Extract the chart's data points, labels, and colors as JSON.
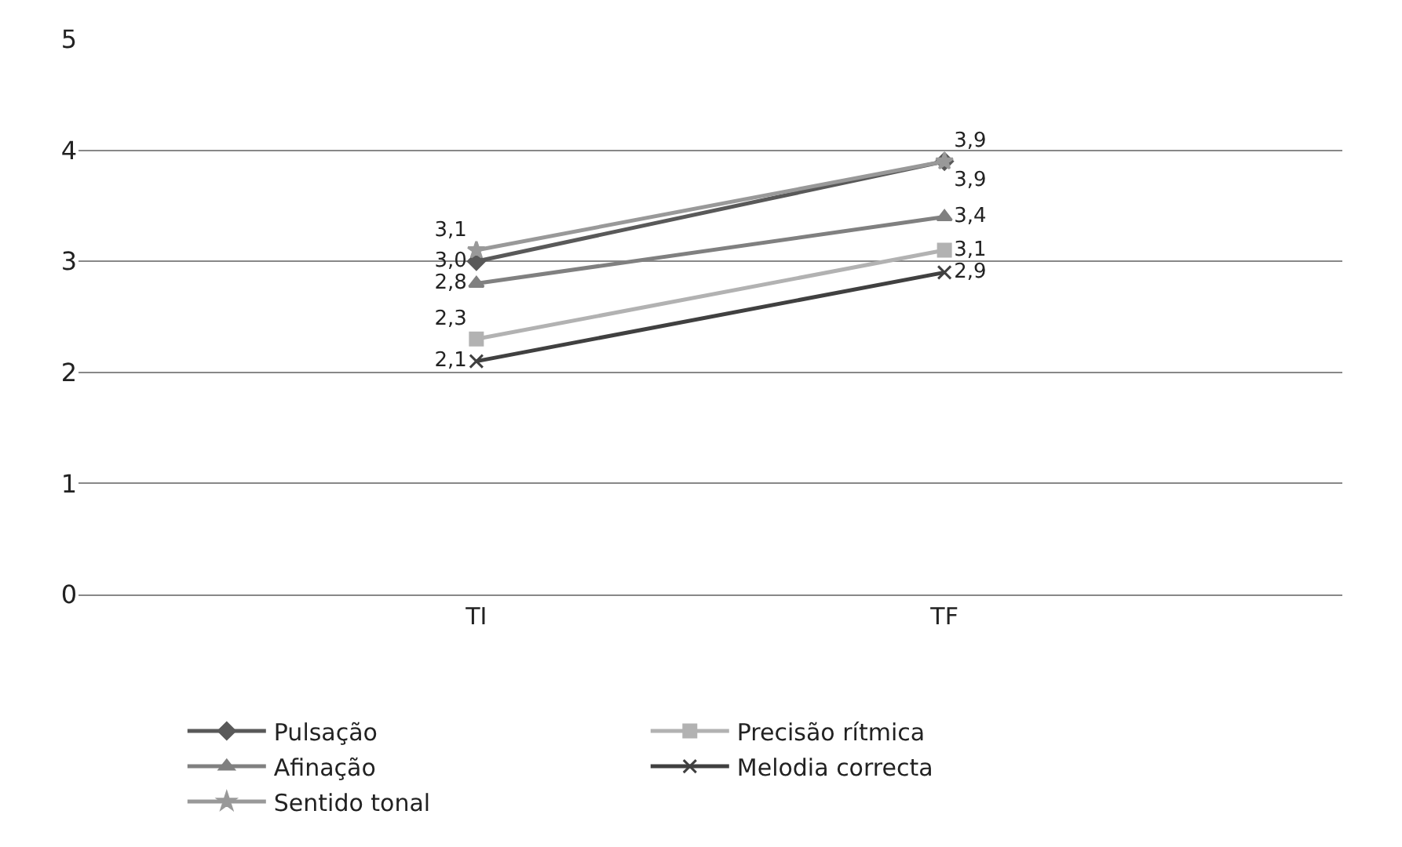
{
  "chart_data": {
    "type": "line",
    "categories": [
      "TI",
      "TF"
    ],
    "series": [
      {
        "name": "Pulsação",
        "color": "#595959",
        "marker": "diamond",
        "values": [
          3.0,
          3.9
        ],
        "value_labels": [
          "3,0",
          "3,9"
        ]
      },
      {
        "name": "Precisão rítmica",
        "color": "#b2b2b2",
        "marker": "square",
        "values": [
          2.3,
          3.1
        ],
        "value_labels": [
          "2,3",
          "3,1"
        ]
      },
      {
        "name": "Afinação",
        "color": "#808080",
        "marker": "triangle",
        "values": [
          2.8,
          3.4
        ],
        "value_labels": [
          "2,8",
          "3,4"
        ]
      },
      {
        "name": "Melodia correcta",
        "color": "#404040",
        "marker": "cross",
        "values": [
          2.1,
          2.9
        ],
        "value_labels": [
          "2,1",
          "2,9"
        ]
      },
      {
        "name": "Sentido tonal",
        "color": "#999999",
        "marker": "star",
        "values": [
          3.1,
          3.9
        ],
        "value_labels": [
          "3,1",
          "3,9"
        ]
      }
    ],
    "ylim": [
      0,
      5
    ],
    "yticks": [
      0,
      1,
      2,
      3,
      4,
      5
    ],
    "grid": "y",
    "legend": "bottom"
  }
}
